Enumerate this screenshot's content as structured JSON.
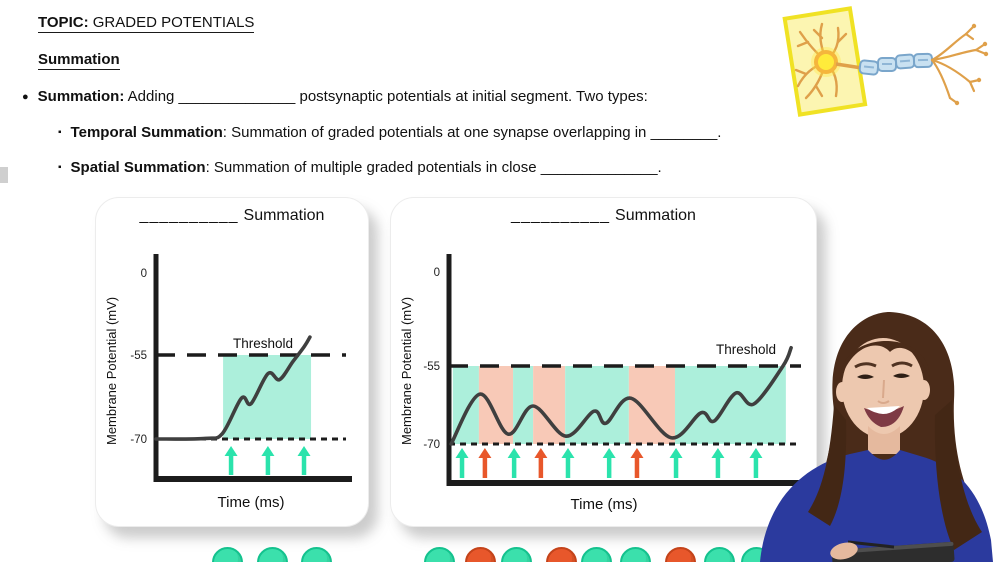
{
  "header": {
    "topic_label": "TOPIC:",
    "topic_title": " GRADED POTENTIALS",
    "section_title": "Summation"
  },
  "notes": {
    "bullet_glyph": "●",
    "sub_glyph": "▪",
    "summation_lead": "Summation:",
    "summation_body": " Adding ______________ postsynaptic potentials at initial segment. Two types:",
    "temporal_lead": "Temporal Summation",
    "temporal_body": ": Summation of graded potentials at one synapse overlapping in ________.",
    "spatial_lead": "Spatial Summation",
    "spatial_body": ": Summation of multiple graded potentials in close ______________."
  },
  "colors": {
    "band_teal": "#ACEFDB",
    "band_salmon": "#F8C9B7",
    "stim_teal": "#2BE3AC",
    "stim_orange": "#E8572B",
    "curve": "#3F3F3F",
    "axis": "#1C1C1C",
    "highlight_yellow": "#F0E224",
    "myelin_blue": "#C9E1F1",
    "neuron_orange": "#DFA04A",
    "dress_blue": "#2B3A9E"
  },
  "chart_data": [
    {
      "type": "line",
      "title_blank": "__________",
      "title": "Summation",
      "ylabel": "Membrane Potential (mV)",
      "xlabel": "Time (ms)",
      "yticks": [
        "0",
        "-55",
        "-70"
      ],
      "ylim": [
        -80,
        5
      ],
      "threshold_label": "Threshold",
      "threshold_mV": -55,
      "rest_mV": -70,
      "grid": false,
      "curve_mV": [
        [
          0,
          -70
        ],
        [
          0.26,
          -69.9
        ],
        [
          0.35,
          -69
        ],
        [
          0.45,
          -62.7
        ],
        [
          0.5,
          -63.7
        ],
        [
          0.59,
          -58.3
        ],
        [
          0.65,
          -59.4
        ],
        [
          0.72,
          -56.2
        ],
        [
          0.78,
          -53.5
        ],
        [
          0.81,
          -51.8
        ]
      ],
      "bands": [
        {
          "x0": 0.353,
          "x1": 0.816,
          "color": "teal"
        }
      ],
      "stimuli": [
        {
          "x": 0.395,
          "color": "teal"
        },
        {
          "x": 0.589,
          "color": "teal"
        },
        {
          "x": 0.779,
          "color": "teal"
        }
      ]
    },
    {
      "type": "line",
      "title_blank": "__________",
      "title": "Summation",
      "ylabel": "Membrane Potential (mV)",
      "xlabel": "Time (ms)",
      "yticks": [
        "0",
        "-55",
        "-70"
      ],
      "ylim": [
        -80,
        5
      ],
      "threshold_label": "Threshold",
      "threshold_mV": -55,
      "rest_mV": -70,
      "grid": false,
      "curve_mV": [
        [
          0.006,
          -70
        ],
        [
          0.088,
          -60.4
        ],
        [
          0.168,
          -68.1
        ],
        [
          0.239,
          -62.7
        ],
        [
          0.332,
          -68.5
        ],
        [
          0.412,
          -63.7
        ],
        [
          0.446,
          -66
        ],
        [
          0.517,
          -61.2
        ],
        [
          0.631,
          -68.8
        ],
        [
          0.716,
          -64
        ],
        [
          0.753,
          -65.6
        ],
        [
          0.815,
          -60.2
        ],
        [
          0.866,
          -62.3
        ],
        [
          0.949,
          -55
        ],
        [
          0.972,
          -51.5
        ]
      ],
      "bands": [
        {
          "x0": 0.011,
          "x1": 0.085,
          "color": "teal"
        },
        {
          "x0": 0.085,
          "x1": 0.182,
          "color": "salmon"
        },
        {
          "x0": 0.182,
          "x1": 0.239,
          "color": "teal"
        },
        {
          "x0": 0.239,
          "x1": 0.33,
          "color": "salmon"
        },
        {
          "x0": 0.33,
          "x1": 0.511,
          "color": "teal"
        },
        {
          "x0": 0.511,
          "x1": 0.642,
          "color": "salmon"
        },
        {
          "x0": 0.642,
          "x1": 0.957,
          "color": "teal"
        }
      ],
      "stimuli": [
        {
          "x": 0.037,
          "color": "teal"
        },
        {
          "x": 0.102,
          "color": "orange"
        },
        {
          "x": 0.185,
          "color": "teal"
        },
        {
          "x": 0.261,
          "color": "orange"
        },
        {
          "x": 0.338,
          "color": "teal"
        },
        {
          "x": 0.455,
          "color": "teal"
        },
        {
          "x": 0.534,
          "color": "orange"
        },
        {
          "x": 0.645,
          "color": "teal"
        },
        {
          "x": 0.764,
          "color": "teal"
        },
        {
          "x": 0.872,
          "color": "teal"
        }
      ]
    }
  ],
  "bottom_stimulus_row": {
    "left": [
      {
        "x": 225,
        "color": "teal"
      },
      {
        "x": 270,
        "color": "teal"
      },
      {
        "x": 314,
        "color": "teal"
      }
    ],
    "right": [
      {
        "x": 437,
        "color": "teal"
      },
      {
        "x": 478,
        "color": "orange"
      },
      {
        "x": 514,
        "color": "teal"
      },
      {
        "x": 559,
        "color": "orange"
      },
      {
        "x": 594,
        "color": "teal"
      },
      {
        "x": 633,
        "color": "teal"
      },
      {
        "x": 678,
        "color": "orange"
      },
      {
        "x": 717,
        "color": "teal"
      },
      {
        "x": 754,
        "color": "teal"
      }
    ]
  }
}
